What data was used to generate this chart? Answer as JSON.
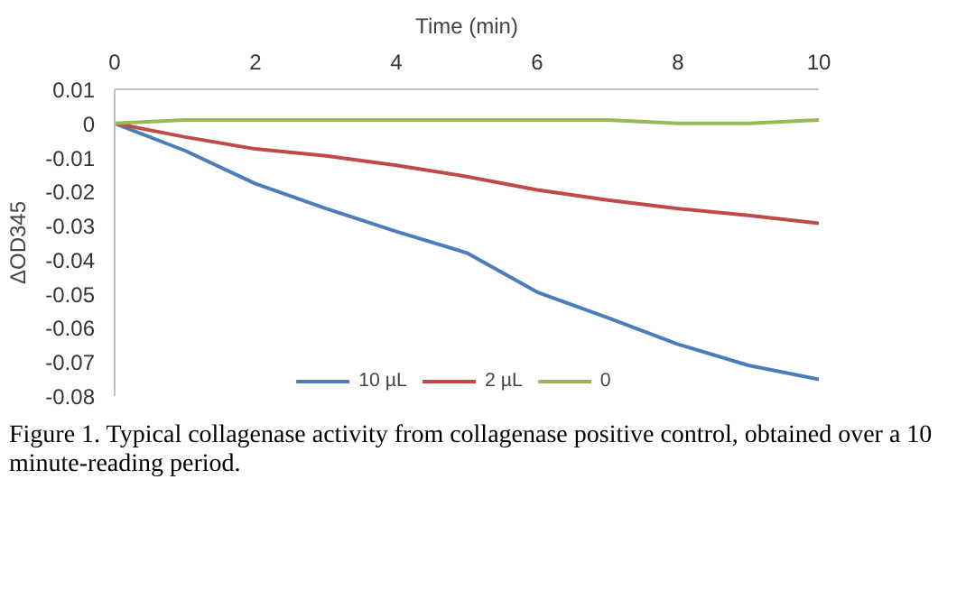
{
  "chart_data": {
    "type": "line",
    "xlabel": "Time (min)",
    "ylabel": "ΔOD345",
    "x": [
      0,
      1,
      2,
      3,
      4,
      5,
      6,
      7,
      8,
      9,
      10
    ],
    "series": [
      {
        "name": "10 µL",
        "color": "#4a7ebb",
        "values": [
          0,
          -0.008,
          -0.0177,
          -0.025,
          -0.0317,
          -0.038,
          -0.0495,
          -0.057,
          -0.0648,
          -0.071,
          -0.0751
        ]
      },
      {
        "name": "2 µL",
        "color": "#be4b48",
        "values": [
          0,
          -0.004,
          -0.0075,
          -0.0095,
          -0.0123,
          -0.0156,
          -0.0195,
          -0.0225,
          -0.025,
          -0.027,
          -0.0293
        ]
      },
      {
        "name": "0",
        "color": "#98b954",
        "values": [
          0,
          0.001,
          0.001,
          0.001,
          0.001,
          0.001,
          0.001,
          0.001,
          0,
          0,
          0.001
        ]
      }
    ],
    "xlim": [
      0,
      10
    ],
    "xticks": [
      0,
      2,
      4,
      6,
      8,
      10
    ],
    "ylim": [
      -0.08,
      0.01
    ],
    "yticks": [
      -0.08,
      -0.07,
      -0.06,
      -0.05,
      -0.04,
      -0.03,
      -0.02,
      -0.01,
      0,
      0.01
    ],
    "grid": false,
    "legend": "bottom",
    "marker": "none",
    "line_style": "solid",
    "annotations": [
      "Figure 1. Typical collagenase activity from collagenase positive control, obtained over a 10 minute-reading period."
    ]
  }
}
